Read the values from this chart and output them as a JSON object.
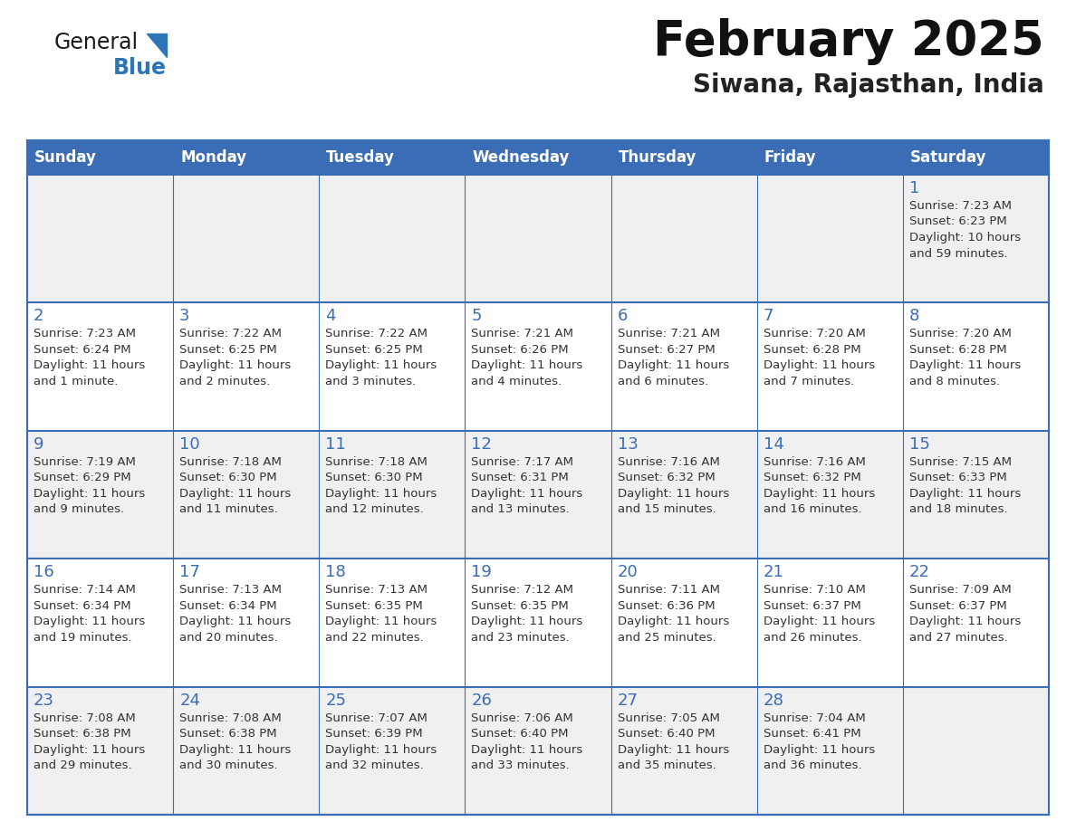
{
  "title": "February 2025",
  "subtitle": "Siwana, Rajasthan, India",
  "days_of_week": [
    "Sunday",
    "Monday",
    "Tuesday",
    "Wednesday",
    "Thursday",
    "Friday",
    "Saturday"
  ],
  "header_bg": "#3A6DB5",
  "header_text": "#FFFFFF",
  "cell_bg_odd": "#F0F0F0",
  "cell_bg_even": "#FFFFFF",
  "cell_border": "#3A6DB5",
  "day_number_color": "#3A6DB5",
  "text_color": "#333333",
  "title_color": "#111111",
  "subtitle_color": "#222222",
  "logo_general_color": "#1a1a1a",
  "logo_blue_color": "#2E75B6",
  "calendar_data": [
    [
      null,
      null,
      null,
      null,
      null,
      null,
      {
        "day": 1,
        "sunrise": "7:23 AM",
        "sunset": "6:23 PM",
        "daylight": "10 hours\nand 59 minutes."
      }
    ],
    [
      {
        "day": 2,
        "sunrise": "7:23 AM",
        "sunset": "6:24 PM",
        "daylight": "11 hours\nand 1 minute."
      },
      {
        "day": 3,
        "sunrise": "7:22 AM",
        "sunset": "6:25 PM",
        "daylight": "11 hours\nand 2 minutes."
      },
      {
        "day": 4,
        "sunrise": "7:22 AM",
        "sunset": "6:25 PM",
        "daylight": "11 hours\nand 3 minutes."
      },
      {
        "day": 5,
        "sunrise": "7:21 AM",
        "sunset": "6:26 PM",
        "daylight": "11 hours\nand 4 minutes."
      },
      {
        "day": 6,
        "sunrise": "7:21 AM",
        "sunset": "6:27 PM",
        "daylight": "11 hours\nand 6 minutes."
      },
      {
        "day": 7,
        "sunrise": "7:20 AM",
        "sunset": "6:28 PM",
        "daylight": "11 hours\nand 7 minutes."
      },
      {
        "day": 8,
        "sunrise": "7:20 AM",
        "sunset": "6:28 PM",
        "daylight": "11 hours\nand 8 minutes."
      }
    ],
    [
      {
        "day": 9,
        "sunrise": "7:19 AM",
        "sunset": "6:29 PM",
        "daylight": "11 hours\nand 9 minutes."
      },
      {
        "day": 10,
        "sunrise": "7:18 AM",
        "sunset": "6:30 PM",
        "daylight": "11 hours\nand 11 minutes."
      },
      {
        "day": 11,
        "sunrise": "7:18 AM",
        "sunset": "6:30 PM",
        "daylight": "11 hours\nand 12 minutes."
      },
      {
        "day": 12,
        "sunrise": "7:17 AM",
        "sunset": "6:31 PM",
        "daylight": "11 hours\nand 13 minutes."
      },
      {
        "day": 13,
        "sunrise": "7:16 AM",
        "sunset": "6:32 PM",
        "daylight": "11 hours\nand 15 minutes."
      },
      {
        "day": 14,
        "sunrise": "7:16 AM",
        "sunset": "6:32 PM",
        "daylight": "11 hours\nand 16 minutes."
      },
      {
        "day": 15,
        "sunrise": "7:15 AM",
        "sunset": "6:33 PM",
        "daylight": "11 hours\nand 18 minutes."
      }
    ],
    [
      {
        "day": 16,
        "sunrise": "7:14 AM",
        "sunset": "6:34 PM",
        "daylight": "11 hours\nand 19 minutes."
      },
      {
        "day": 17,
        "sunrise": "7:13 AM",
        "sunset": "6:34 PM",
        "daylight": "11 hours\nand 20 minutes."
      },
      {
        "day": 18,
        "sunrise": "7:13 AM",
        "sunset": "6:35 PM",
        "daylight": "11 hours\nand 22 minutes."
      },
      {
        "day": 19,
        "sunrise": "7:12 AM",
        "sunset": "6:35 PM",
        "daylight": "11 hours\nand 23 minutes."
      },
      {
        "day": 20,
        "sunrise": "7:11 AM",
        "sunset": "6:36 PM",
        "daylight": "11 hours\nand 25 minutes."
      },
      {
        "day": 21,
        "sunrise": "7:10 AM",
        "sunset": "6:37 PM",
        "daylight": "11 hours\nand 26 minutes."
      },
      {
        "day": 22,
        "sunrise": "7:09 AM",
        "sunset": "6:37 PM",
        "daylight": "11 hours\nand 27 minutes."
      }
    ],
    [
      {
        "day": 23,
        "sunrise": "7:08 AM",
        "sunset": "6:38 PM",
        "daylight": "11 hours\nand 29 minutes."
      },
      {
        "day": 24,
        "sunrise": "7:08 AM",
        "sunset": "6:38 PM",
        "daylight": "11 hours\nand 30 minutes."
      },
      {
        "day": 25,
        "sunrise": "7:07 AM",
        "sunset": "6:39 PM",
        "daylight": "11 hours\nand 32 minutes."
      },
      {
        "day": 26,
        "sunrise": "7:06 AM",
        "sunset": "6:40 PM",
        "daylight": "11 hours\nand 33 minutes."
      },
      {
        "day": 27,
        "sunrise": "7:05 AM",
        "sunset": "6:40 PM",
        "daylight": "11 hours\nand 35 minutes."
      },
      {
        "day": 28,
        "sunrise": "7:04 AM",
        "sunset": "6:41 PM",
        "daylight": "11 hours\nand 36 minutes."
      },
      null
    ]
  ]
}
